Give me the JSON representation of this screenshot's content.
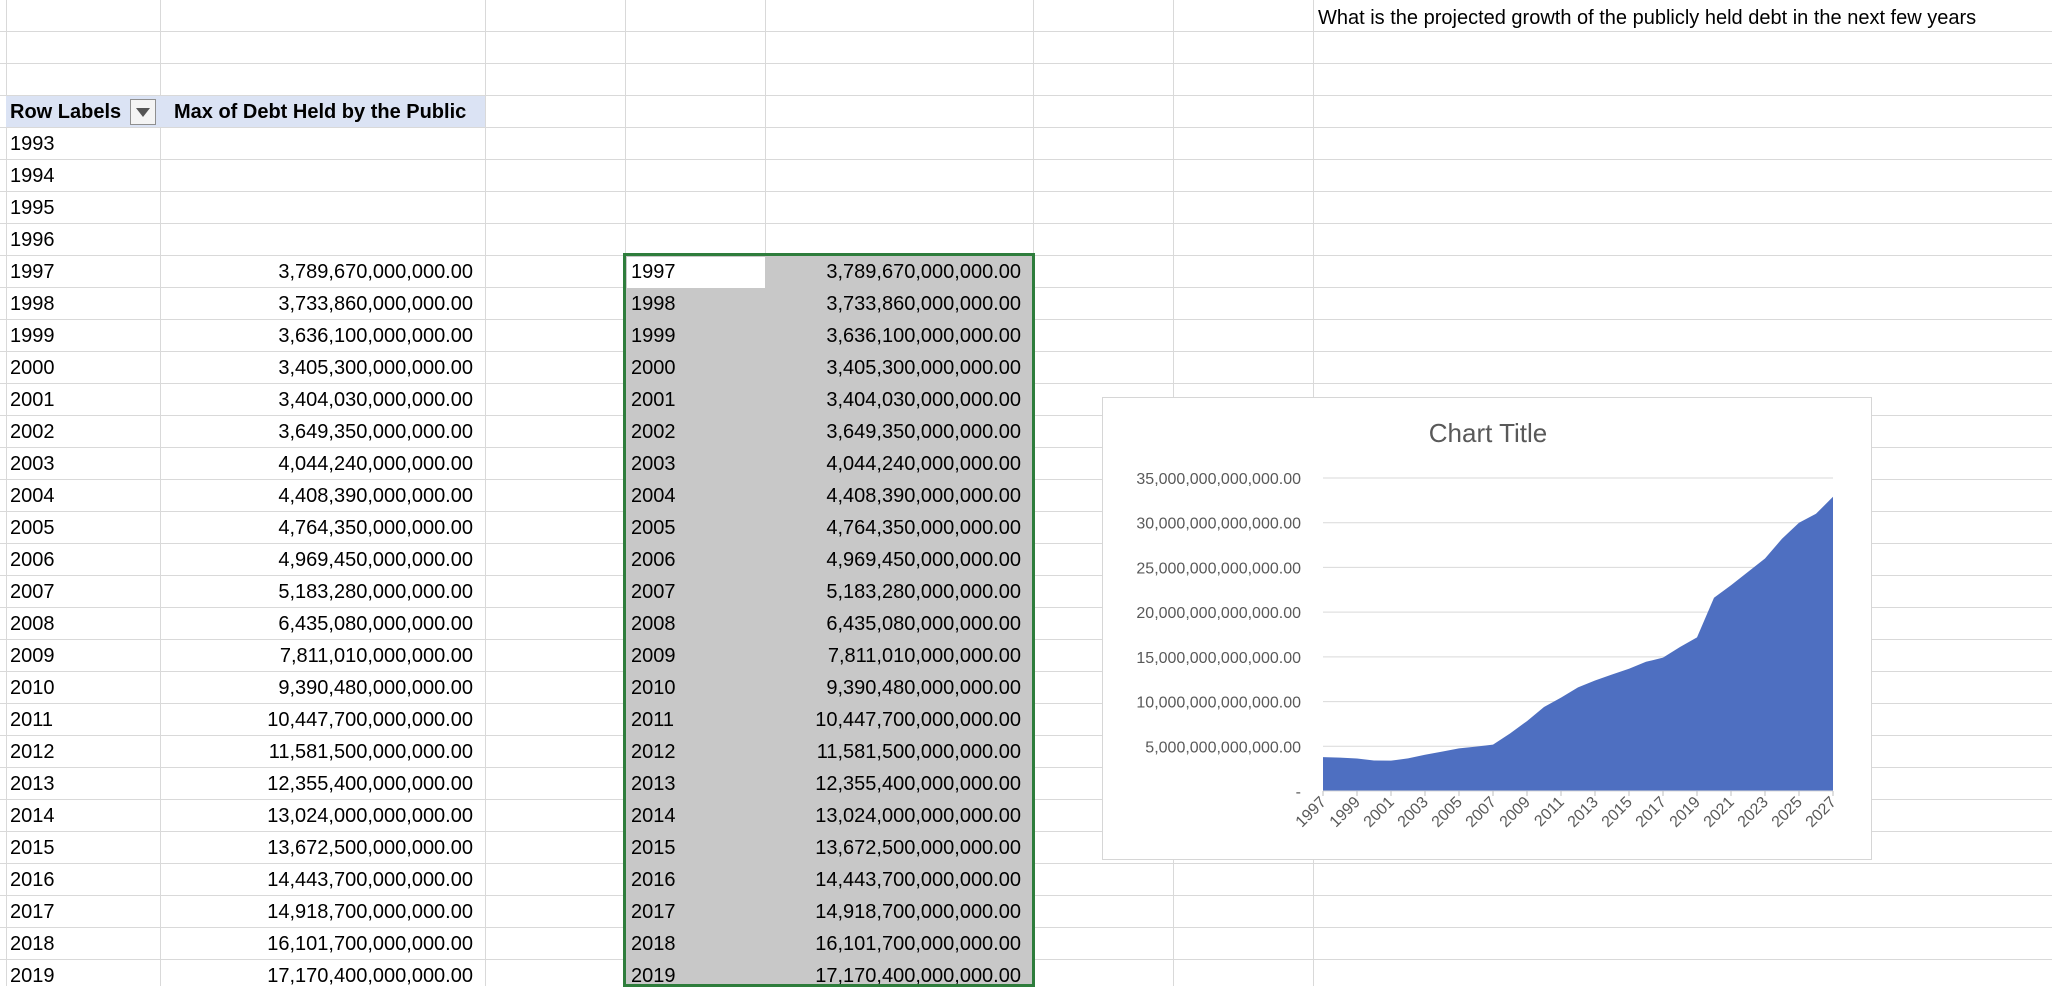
{
  "question": "What is the projected growth of the publicly held debt in the next few years",
  "pivot": {
    "header_row_labels": "Row Labels",
    "header_values": "Max of Debt Held by the Public",
    "rows": [
      {
        "year": "1993",
        "value": ""
      },
      {
        "year": "1994",
        "value": ""
      },
      {
        "year": "1995",
        "value": ""
      },
      {
        "year": "1996",
        "value": ""
      },
      {
        "year": "1997",
        "value": "3,789,670,000,000.00"
      },
      {
        "year": "1998",
        "value": "3,733,860,000,000.00"
      },
      {
        "year": "1999",
        "value": "3,636,100,000,000.00"
      },
      {
        "year": "2000",
        "value": "3,405,300,000,000.00"
      },
      {
        "year": "2001",
        "value": "3,404,030,000,000.00"
      },
      {
        "year": "2002",
        "value": "3,649,350,000,000.00"
      },
      {
        "year": "2003",
        "value": "4,044,240,000,000.00"
      },
      {
        "year": "2004",
        "value": "4,408,390,000,000.00"
      },
      {
        "year": "2005",
        "value": "4,764,350,000,000.00"
      },
      {
        "year": "2006",
        "value": "4,969,450,000,000.00"
      },
      {
        "year": "2007",
        "value": "5,183,280,000,000.00"
      },
      {
        "year": "2008",
        "value": "6,435,080,000,000.00"
      },
      {
        "year": "2009",
        "value": "7,811,010,000,000.00"
      },
      {
        "year": "2010",
        "value": "9,390,480,000,000.00"
      },
      {
        "year": "2011",
        "value": "10,447,700,000,000.00"
      },
      {
        "year": "2012",
        "value": "11,581,500,000,000.00"
      },
      {
        "year": "2013",
        "value": "12,355,400,000,000.00"
      },
      {
        "year": "2014",
        "value": "13,024,000,000,000.00"
      },
      {
        "year": "2015",
        "value": "13,672,500,000,000.00"
      },
      {
        "year": "2016",
        "value": "14,443,700,000,000.00"
      },
      {
        "year": "2017",
        "value": "14,918,700,000,000.00"
      },
      {
        "year": "2018",
        "value": "16,101,700,000,000.00"
      },
      {
        "year": "2019",
        "value": "17,170,400,000,000.00"
      }
    ]
  },
  "copy_range": {
    "rows": [
      {
        "year": "1997",
        "value": "3,789,670,000,000.00"
      },
      {
        "year": "1998",
        "value": "3,733,860,000,000.00"
      },
      {
        "year": "1999",
        "value": "3,636,100,000,000.00"
      },
      {
        "year": "2000",
        "value": "3,405,300,000,000.00"
      },
      {
        "year": "2001",
        "value": "3,404,030,000,000.00"
      },
      {
        "year": "2002",
        "value": "3,649,350,000,000.00"
      },
      {
        "year": "2003",
        "value": "4,044,240,000,000.00"
      },
      {
        "year": "2004",
        "value": "4,408,390,000,000.00"
      },
      {
        "year": "2005",
        "value": "4,764,350,000,000.00"
      },
      {
        "year": "2006",
        "value": "4,969,450,000,000.00"
      },
      {
        "year": "2007",
        "value": "5,183,280,000,000.00"
      },
      {
        "year": "2008",
        "value": "6,435,080,000,000.00"
      },
      {
        "year": "2009",
        "value": "7,811,010,000,000.00"
      },
      {
        "year": "2010",
        "value": "9,390,480,000,000.00"
      },
      {
        "year": "2011",
        "value": "10,447,700,000,000.00"
      },
      {
        "year": "2012",
        "value": "11,581,500,000,000.00"
      },
      {
        "year": "2013",
        "value": "12,355,400,000,000.00"
      },
      {
        "year": "2014",
        "value": "13,024,000,000,000.00"
      },
      {
        "year": "2015",
        "value": "13,672,500,000,000.00"
      },
      {
        "year": "2016",
        "value": "14,443,700,000,000.00"
      },
      {
        "year": "2017",
        "value": "14,918,700,000,000.00"
      },
      {
        "year": "2018",
        "value": "16,101,700,000,000.00"
      },
      {
        "year": "2019",
        "value": "17,170,400,000,000.00"
      }
    ]
  },
  "colors": {
    "header_fill": "#dbe3f4",
    "selection_fill": "#c8c8c8",
    "selection_border": "#2e7d3c",
    "area_fill": "#4e6fc1",
    "gridline": "#d9d9d9"
  },
  "chart_data": {
    "type": "area",
    "title": "Chart Title",
    "x": [
      "1997",
      "1998",
      "1999",
      "2000",
      "2001",
      "2002",
      "2003",
      "2004",
      "2005",
      "2006",
      "2007",
      "2008",
      "2009",
      "2010",
      "2011",
      "2012",
      "2013",
      "2014",
      "2015",
      "2016",
      "2017",
      "2018",
      "2019",
      "2020",
      "2021",
      "2022",
      "2023",
      "2024",
      "2025",
      "2026",
      "2027"
    ],
    "x_tick_labels": [
      "1997",
      "1999",
      "2001",
      "2003",
      "2005",
      "2007",
      "2009",
      "2011",
      "2013",
      "2015",
      "2017",
      "2019",
      "2021",
      "2023",
      "2025",
      "2027"
    ],
    "series": [
      {
        "values": [
          3789670000000,
          3733860000000,
          3636100000000,
          3405300000000,
          3404030000000,
          3649350000000,
          4044240000000,
          4408390000000,
          4764350000000,
          4969450000000,
          5183280000000,
          6435080000000,
          7811010000000,
          9390480000000,
          10447700000000,
          11581500000000,
          12355400000000,
          13024000000000,
          13672500000000,
          14443700000000,
          14918700000000,
          16101700000000,
          17170400000000,
          21600000000000,
          23000000000000,
          24500000000000,
          26000000000000,
          28200000000000,
          30000000000000,
          31000000000000,
          32900000000000
        ]
      }
    ],
    "y_tick_labels": [
      "-",
      "5,000,000,000,000.00",
      "10,000,000,000,000.00",
      "15,000,000,000,000.00",
      "20,000,000,000,000.00",
      "25,000,000,000,000.00",
      "30,000,000,000,000.00",
      "35,000,000,000,000.00"
    ],
    "ylim": [
      0,
      35000000000000
    ],
    "grid": true,
    "legend": "none"
  }
}
